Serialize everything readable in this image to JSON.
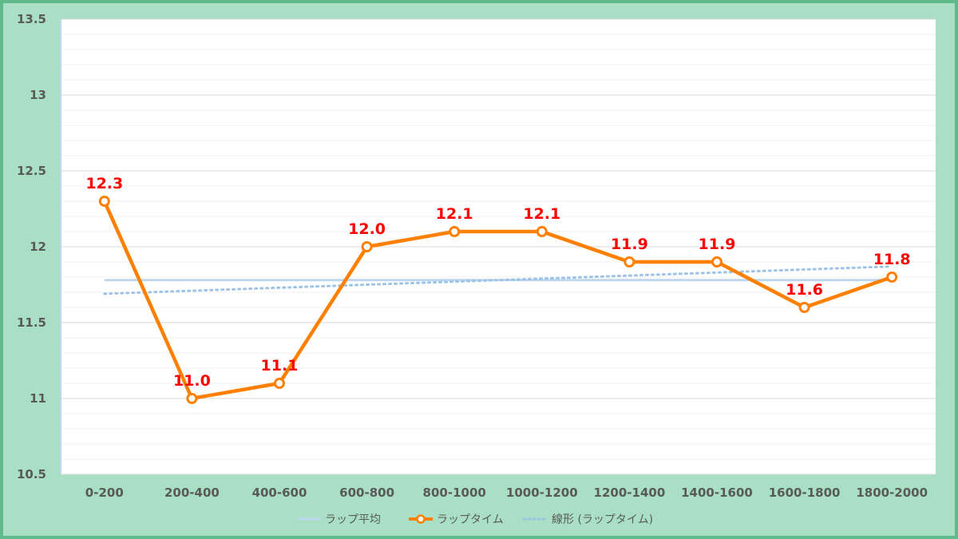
{
  "chart_data": {
    "type": "line",
    "categories": [
      "0-200",
      "200-400",
      "400-600",
      "600-800",
      "800-1000",
      "1000-1200",
      "1200-1400",
      "1400-1600",
      "1600-1800",
      "1800-2000"
    ],
    "series": [
      {
        "name": "ラップ平均",
        "values": [
          11.78,
          11.78,
          11.78,
          11.78,
          11.78,
          11.78,
          11.78,
          11.78,
          11.78,
          11.78
        ],
        "color": "#bdd7ee",
        "style": "solid"
      },
      {
        "name": "ラップタイム",
        "values": [
          12.3,
          11.0,
          11.1,
          12.0,
          12.1,
          12.1,
          11.9,
          11.9,
          11.6,
          11.8
        ],
        "data_labels": [
          "12.3",
          "11.0",
          "11.1",
          "12.0",
          "12.1",
          "12.1",
          "11.9",
          "11.9",
          "11.6",
          "11.8"
        ],
        "color": "#ff8000",
        "marker": "circle",
        "style": "solid"
      },
      {
        "name": "線形 (ラップタイム)",
        "values": [
          11.69,
          11.71,
          11.73,
          11.75,
          11.77,
          11.79,
          11.81,
          11.83,
          11.85,
          11.87
        ],
        "color": "#9dc3e6",
        "style": "dotted"
      }
    ],
    "ylim": [
      10.5,
      13.5
    ],
    "yticks": [
      "13.5",
      "13",
      "12.5",
      "12",
      "11.5",
      "11",
      "10.5"
    ],
    "ytick_values": [
      13.5,
      13,
      12.5,
      12,
      11.5,
      11,
      10.5
    ],
    "grid": true,
    "legend_position": "bottom",
    "data_label_color": "#ff0000",
    "frame_color": "#5fb98a",
    "background_color": "#a9dfc5"
  }
}
